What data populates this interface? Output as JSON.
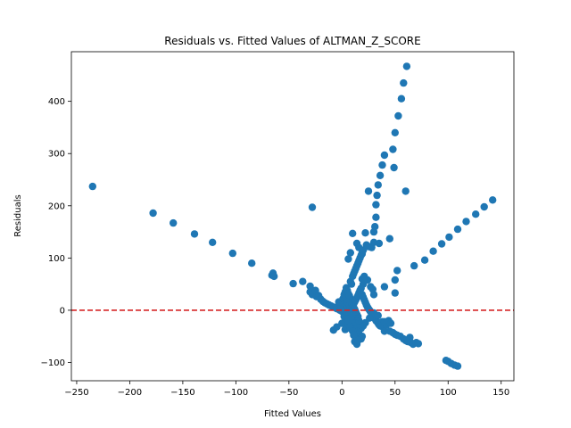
{
  "chart_data": {
    "type": "scatter",
    "title": "Residuals vs. Fitted Values of ALTMAN_Z_SCORE",
    "xlabel": "Fitted Values",
    "ylabel": "Residuals",
    "xlim": [
      -255,
      162
    ],
    "ylim": [
      -135,
      495
    ],
    "xticks": [
      -250,
      -200,
      -150,
      -100,
      -50,
      0,
      50,
      100,
      150
    ],
    "yticks": [
      -100,
      0,
      100,
      200,
      300,
      400
    ],
    "grid": false,
    "marker_color": "#1f77b4",
    "reference_line": {
      "y": 0,
      "color": "#d62728",
      "style": "dashed"
    },
    "points": [
      [
        -235,
        237
      ],
      [
        -178,
        186
      ],
      [
        -159,
        167
      ],
      [
        -139,
        146
      ],
      [
        -122,
        130
      ],
      [
        -103,
        109
      ],
      [
        -85,
        90
      ],
      [
        -66,
        67
      ],
      [
        -65,
        71
      ],
      [
        -64,
        65
      ],
      [
        -46,
        51
      ],
      [
        -37,
        55
      ],
      [
        -30,
        46
      ],
      [
        -28,
        197
      ],
      [
        -30,
        35
      ],
      [
        -28,
        30
      ],
      [
        -25,
        38
      ],
      [
        -24,
        26
      ],
      [
        -22,
        28
      ],
      [
        -20,
        21
      ],
      [
        -18,
        17
      ],
      [
        -16,
        14
      ],
      [
        -14,
        12
      ],
      [
        -12,
        10
      ],
      [
        -10,
        8
      ],
      [
        -8,
        6
      ],
      [
        -6,
        5
      ],
      [
        -5,
        3
      ],
      [
        -3,
        2
      ],
      [
        -2,
        0
      ],
      [
        0,
        -2
      ],
      [
        2,
        -4
      ],
      [
        4,
        -6
      ],
      [
        6,
        -9
      ],
      [
        5,
        -30
      ],
      [
        3,
        -37
      ],
      [
        -8,
        -38
      ],
      [
        -5,
        -32
      ],
      [
        0,
        -25
      ],
      [
        8,
        -20
      ],
      [
        10,
        -15
      ],
      [
        -3,
        16
      ],
      [
        -1,
        12
      ],
      [
        1,
        22
      ],
      [
        2,
        30
      ],
      [
        3,
        35
      ],
      [
        4,
        25
      ],
      [
        5,
        18
      ],
      [
        6,
        10
      ],
      [
        7,
        4
      ],
      [
        8,
        0
      ],
      [
        9,
        -5
      ],
      [
        10,
        -10
      ],
      [
        11,
        -18
      ],
      [
        12,
        -25
      ],
      [
        13,
        -30
      ],
      [
        14,
        -35
      ],
      [
        15,
        -40
      ],
      [
        16,
        -45
      ],
      [
        17,
        -50
      ],
      [
        18,
        -55
      ],
      [
        19,
        -50
      ],
      [
        12,
        -60
      ],
      [
        14,
        -65
      ],
      [
        13,
        -55
      ],
      [
        6,
        -27
      ],
      [
        8,
        -35
      ],
      [
        10,
        -40
      ],
      [
        11,
        -48
      ],
      [
        15,
        -58
      ],
      [
        4,
        43
      ],
      [
        5,
        38
      ],
      [
        6,
        32
      ],
      [
        7,
        28
      ],
      [
        8,
        22
      ],
      [
        9,
        18
      ],
      [
        10,
        14
      ],
      [
        11,
        12
      ],
      [
        12,
        16
      ],
      [
        13,
        20
      ],
      [
        14,
        24
      ],
      [
        15,
        28
      ],
      [
        16,
        33
      ],
      [
        17,
        38
      ],
      [
        18,
        42
      ],
      [
        19,
        30
      ],
      [
        20,
        25
      ],
      [
        21,
        20
      ],
      [
        22,
        15
      ],
      [
        23,
        10
      ],
      [
        24,
        6
      ],
      [
        25,
        3
      ],
      [
        26,
        0
      ],
      [
        27,
        -3
      ],
      [
        28,
        -6
      ],
      [
        29,
        -10
      ],
      [
        30,
        -13
      ],
      [
        31,
        -16
      ],
      [
        32,
        -20
      ],
      [
        33,
        -22
      ],
      [
        34,
        -25
      ],
      [
        35,
        -28
      ],
      [
        36,
        -30
      ],
      [
        37,
        -25
      ],
      [
        38,
        -22
      ],
      [
        39,
        -33
      ],
      [
        40,
        -40
      ],
      [
        8,
        55
      ],
      [
        9,
        50
      ],
      [
        10,
        65
      ],
      [
        11,
        70
      ],
      [
        12,
        75
      ],
      [
        13,
        80
      ],
      [
        14,
        85
      ],
      [
        15,
        90
      ],
      [
        16,
        95
      ],
      [
        17,
        100
      ],
      [
        18,
        105
      ],
      [
        19,
        110
      ],
      [
        14,
        128
      ],
      [
        16,
        120
      ],
      [
        19,
        108
      ],
      [
        20,
        115
      ],
      [
        22,
        148
      ],
      [
        23,
        125
      ],
      [
        25,
        122
      ],
      [
        28,
        120
      ],
      [
        30,
        150
      ],
      [
        31,
        160
      ],
      [
        32,
        178
      ],
      [
        32,
        202
      ],
      [
        33,
        220
      ],
      [
        34,
        240
      ],
      [
        36,
        258
      ],
      [
        38,
        278
      ],
      [
        40,
        297
      ],
      [
        25,
        228
      ],
      [
        30,
        130
      ],
      [
        35,
        128
      ],
      [
        10,
        147
      ],
      [
        8,
        110
      ],
      [
        6,
        98
      ],
      [
        20,
        50
      ],
      [
        30,
        30
      ],
      [
        40,
        45
      ],
      [
        45,
        137
      ],
      [
        48,
        308
      ],
      [
        49,
        273
      ],
      [
        50,
        340
      ],
      [
        53,
        372
      ],
      [
        56,
        405
      ],
      [
        58,
        435
      ],
      [
        61,
        467
      ],
      [
        60,
        228
      ],
      [
        52,
        76
      ],
      [
        50,
        58
      ],
      [
        50,
        33
      ],
      [
        68,
        85
      ],
      [
        78,
        96
      ],
      [
        86,
        113
      ],
      [
        94,
        127
      ],
      [
        101,
        140
      ],
      [
        109,
        155
      ],
      [
        117,
        170
      ],
      [
        126,
        184
      ],
      [
        134,
        198
      ],
      [
        142,
        211
      ],
      [
        42,
        -28
      ],
      [
        45,
        -40
      ],
      [
        48,
        -43
      ],
      [
        50,
        -46
      ],
      [
        52,
        -48
      ],
      [
        55,
        -50
      ],
      [
        58,
        -55
      ],
      [
        60,
        -58
      ],
      [
        62,
        -60
      ],
      [
        64,
        -52
      ],
      [
        65,
        -62
      ],
      [
        67,
        -65
      ],
      [
        70,
        -62
      ],
      [
        72,
        -64
      ],
      [
        98,
        -96
      ],
      [
        100,
        -98
      ],
      [
        103,
        -102
      ],
      [
        106,
        -105
      ],
      [
        109,
        -107
      ],
      [
        40,
        -22
      ],
      [
        44,
        -20
      ],
      [
        46,
        -25
      ],
      [
        30,
        -5
      ],
      [
        34,
        -10
      ],
      [
        26,
        -15
      ],
      [
        22,
        -24
      ],
      [
        20,
        -30
      ],
      [
        18,
        -35
      ],
      [
        17,
        -28
      ],
      [
        16,
        -20
      ],
      [
        15,
        -12
      ],
      [
        14,
        -8
      ],
      [
        13,
        -3
      ],
      [
        12,
        2
      ],
      [
        11,
        5
      ],
      [
        9,
        8
      ],
      [
        7,
        12
      ],
      [
        5,
        15
      ],
      [
        3,
        8
      ],
      [
        1,
        5
      ],
      [
        -1,
        3
      ],
      [
        2,
        -12
      ],
      [
        4,
        -16
      ],
      [
        6,
        -20
      ],
      [
        19,
        60
      ],
      [
        21,
        65
      ],
      [
        24,
        58
      ],
      [
        27,
        45
      ],
      [
        29,
        40
      ]
    ]
  }
}
